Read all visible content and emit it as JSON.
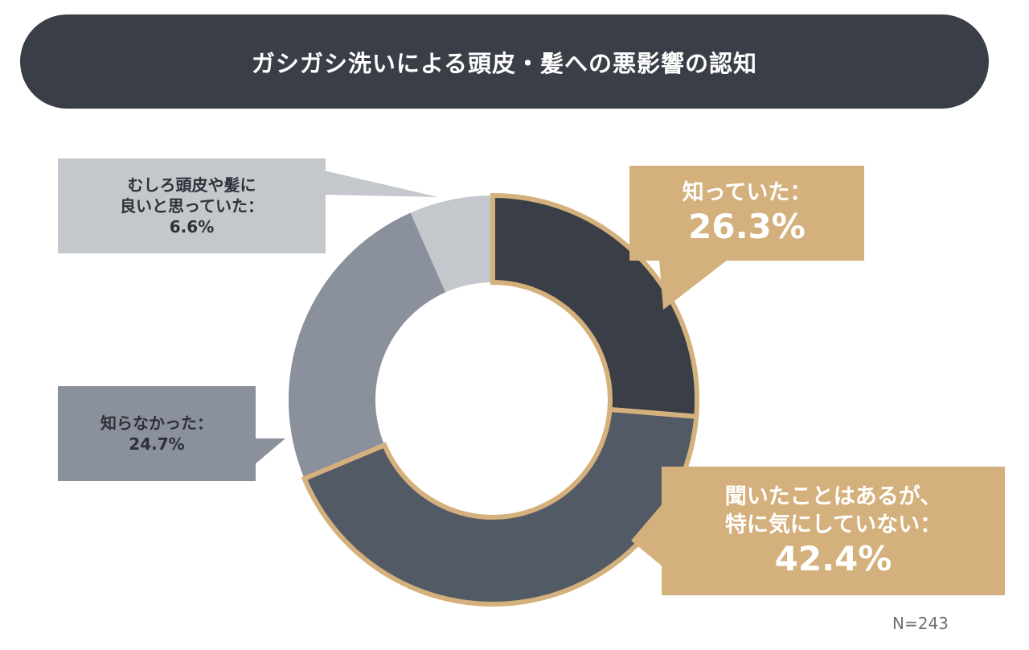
{
  "title": "ガシガシ洗いによる頭皮・髪への悪影響の認知",
  "note": "N=243",
  "colors": {
    "title_bg": "#3a3e46",
    "accent": "#d4b07c"
  },
  "chart_data": {
    "type": "pie",
    "donut": true,
    "title": "ガシガシ洗いによる頭皮・髪への悪影響の認知",
    "start": "top",
    "direction": "clockwise",
    "slices": [
      {
        "label_lines": [
          "知っていた："
        ],
        "value_text": "26.3%",
        "value": 26.3,
        "color": "#3a3e46",
        "highlight": true,
        "label_bg": "#d4b07c"
      },
      {
        "label_lines": [
          "聞いたことはあるが、",
          "特に気にしていない："
        ],
        "value_text": "42.4%",
        "value": 42.4,
        "color": "#525a66",
        "highlight": true,
        "label_bg": "#d4b07c"
      },
      {
        "label_lines": [
          "知らなかった："
        ],
        "value_text": "24.7%",
        "value": 24.7,
        "color": "#8a909c",
        "highlight": false,
        "label_bg": "#8a909c"
      },
      {
        "label_lines": [
          "むしろ頭皮や髪に",
          "良いと思っていた："
        ],
        "value_text": "6.6%",
        "value": 6.6,
        "color": "#c4c7cc",
        "highlight": false,
        "label_bg": "#c4c7cc"
      }
    ],
    "n": "N=243"
  }
}
